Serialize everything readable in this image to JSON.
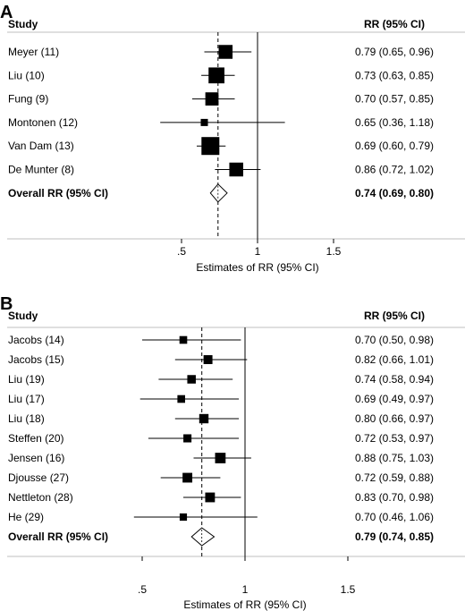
{
  "chart_data": [
    {
      "type": "forest",
      "panel": "A",
      "header": {
        "study": "Study",
        "rr": "RR (95% CI)"
      },
      "xlabel": "Estimates of RR (95% CI)",
      "xticks": [
        ".5",
        "1",
        "1.5"
      ],
      "tick_values": [
        0.5,
        1,
        1.5
      ],
      "xlim": [
        0.3,
        1.8
      ],
      "reference_line": 1,
      "pooled_line": 0.74,
      "studies": [
        {
          "name": "Meyer (11)",
          "rr": 0.79,
          "lo": 0.65,
          "hi": 0.96,
          "label": "0.79 (0.65, 0.96)",
          "weight": 0.7
        },
        {
          "name": "Liu (10)",
          "rr": 0.73,
          "lo": 0.63,
          "hi": 0.85,
          "label": "0.73 (0.63, 0.85)",
          "weight": 0.85
        },
        {
          "name": "Fung (9)",
          "rr": 0.7,
          "lo": 0.57,
          "hi": 0.85,
          "label": "0.70 (0.57, 0.85)",
          "weight": 0.65
        },
        {
          "name": "Montonen (12)",
          "rr": 0.65,
          "lo": 0.36,
          "hi": 1.18,
          "label": "0.65 (0.36, 1.18)",
          "weight": 0.2
        },
        {
          "name": "Van Dam (13)",
          "rr": 0.69,
          "lo": 0.6,
          "hi": 0.79,
          "label": "0.69 (0.60, 0.79)",
          "weight": 1.0
        },
        {
          "name": "De Munter (8)",
          "rr": 0.86,
          "lo": 0.72,
          "hi": 1.02,
          "label": "0.86 (0.72, 1.02)",
          "weight": 0.7
        }
      ],
      "overall": {
        "name": "Overall RR (95% CI)",
        "rr": 0.74,
        "lo": 0.69,
        "hi": 0.8,
        "label": "0.74 (0.69, 0.80)"
      }
    },
    {
      "type": "forest",
      "panel": "B",
      "header": {
        "study": "Study",
        "rr": "RR (95% CI)"
      },
      "xlabel": "Estimates of RR (95% CI)",
      "xticks": [
        ".5",
        "1",
        "1.5"
      ],
      "tick_values": [
        0.5,
        1,
        1.5
      ],
      "xlim": [
        0.3,
        1.8
      ],
      "reference_line": 1,
      "pooled_line": 0.79,
      "studies": [
        {
          "name": "Jacobs (14)",
          "rr": 0.7,
          "lo": 0.5,
          "hi": 0.98,
          "label": "0.70 (0.50, 0.98)",
          "weight": 0.4
        },
        {
          "name": "Jacobs (15)",
          "rr": 0.82,
          "lo": 0.66,
          "hi": 1.01,
          "label": "0.82 (0.66, 1.01)",
          "weight": 0.55
        },
        {
          "name": "Liu (19)",
          "rr": 0.74,
          "lo": 0.58,
          "hi": 0.94,
          "label": "0.74 (0.58, 0.94)",
          "weight": 0.5
        },
        {
          "name": "Liu (17)",
          "rr": 0.69,
          "lo": 0.49,
          "hi": 0.97,
          "label": "0.69 (0.49, 0.97)",
          "weight": 0.4
        },
        {
          "name": "Liu (18)",
          "rr": 0.8,
          "lo": 0.66,
          "hi": 0.97,
          "label": "0.80 (0.66, 0.97)",
          "weight": 0.6
        },
        {
          "name": "Steffen (20)",
          "rr": 0.72,
          "lo": 0.53,
          "hi": 0.97,
          "label": "0.72 (0.53, 0.97)",
          "weight": 0.45
        },
        {
          "name": "Jensen (16)",
          "rr": 0.88,
          "lo": 0.75,
          "hi": 1.03,
          "label": "0.88 (0.75, 1.03)",
          "weight": 0.75
        },
        {
          "name": "Djousse (27)",
          "rr": 0.72,
          "lo": 0.59,
          "hi": 0.88,
          "label": "0.72 (0.59, 0.88)",
          "weight": 0.65
        },
        {
          "name": "Nettleton (28)",
          "rr": 0.83,
          "lo": 0.7,
          "hi": 0.98,
          "label": "0.83 (0.70, 0.98)",
          "weight": 0.65
        },
        {
          "name": "He (29)",
          "rr": 0.7,
          "lo": 0.46,
          "hi": 1.06,
          "label": "0.70 (0.46, 1.06)",
          "weight": 0.35
        }
      ],
      "overall": {
        "name": "Overall RR (95% CI)",
        "rr": 0.79,
        "lo": 0.74,
        "hi": 0.85,
        "label": "0.79 (0.74, 0.85)"
      }
    }
  ]
}
